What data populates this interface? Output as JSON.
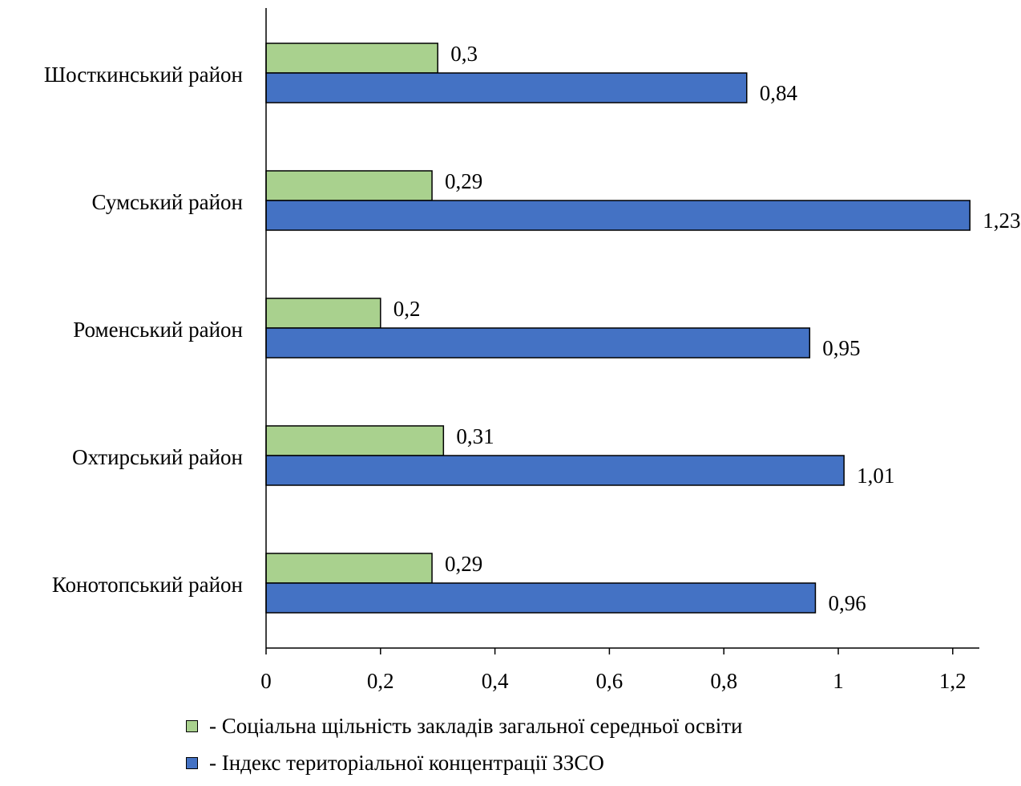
{
  "chart_data": {
    "type": "bar",
    "orientation": "horizontal",
    "categories": [
      "Шосткинський район",
      "Сумський район",
      "Роменський район",
      "Охтирський район",
      "Конотопський район"
    ],
    "series": [
      {
        "name": "Соціальна щільність закладів загальної середньої освіти",
        "legend_text": "- Соціальна щільність закладів загальної середньої освіти",
        "color": "#a9d18e",
        "values": [
          0.3,
          0.29,
          0.2,
          0.31,
          0.29
        ],
        "labels": [
          "0,3",
          "0,29",
          "0,2",
          "0,31",
          "0,29"
        ]
      },
      {
        "name": "Індекс територіальної концентрації ЗЗСО",
        "legend_text": "- Індекс територіальної концентрації ЗЗСО",
        "color": "#4472c4",
        "values": [
          0.84,
          1.23,
          0.95,
          1.01,
          0.96
        ],
        "labels": [
          "0,84",
          "1,23",
          "0,95",
          "1,01",
          "0,96"
        ]
      }
    ],
    "x_ticks": [
      0,
      0.2,
      0.4,
      0.6,
      0.8,
      1,
      1.2
    ],
    "x_tick_labels": [
      "0",
      "0,2",
      "0,4",
      "0,6",
      "0,8",
      "1",
      "1,2"
    ],
    "xlim": [
      0,
      1.25
    ],
    "title": "",
    "xlabel": "",
    "ylabel": "",
    "grid": false,
    "legend_position": "bottom"
  }
}
